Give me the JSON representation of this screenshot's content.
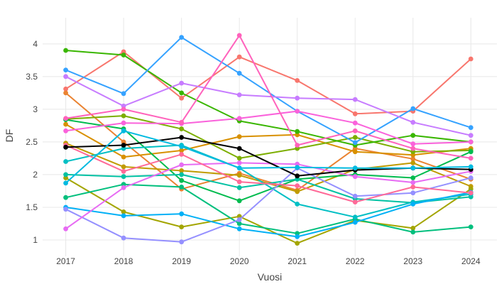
{
  "colors": {
    "background": "#ffffff",
    "grid": "#e8e8e8",
    "tick_text": "#444444"
  },
  "chart_data": {
    "type": "line",
    "title": "",
    "xlabel": "Vuosi",
    "ylabel": "DF",
    "x": [
      2017,
      2018,
      2019,
      2020,
      2021,
      2022,
      2023,
      2024
    ],
    "xtick_labels": [
      "2017",
      "2018",
      "2019",
      "2020",
      "2021",
      "2022",
      "2023",
      "2024"
    ],
    "ytick_values": [
      1,
      1.5,
      2,
      2.5,
      3,
      3.5,
      4
    ],
    "ytick_labels": [
      "1",
      "1.5",
      "2",
      "2.5",
      "3",
      "3.5",
      "4"
    ],
    "xlim": [
      2016.6,
      2024.45
    ],
    "ylim": [
      0.75,
      4.4
    ],
    "grid": true,
    "legend_position": "none",
    "marker": "circle",
    "series": [
      {
        "color": "#F8766D",
        "values": [
          3.31,
          3.88,
          3.17,
          3.8,
          3.44,
          2.93,
          2.97,
          3.77
        ]
      },
      {
        "color": "#EA8331",
        "values": [
          3.25,
          2.5,
          1.78,
          2.02,
          1.76,
          2.4,
          2.24,
          1.93
        ]
      },
      {
        "color": "#D89000",
        "values": [
          2.77,
          2.27,
          2.37,
          2.58,
          2.61,
          2.35,
          2.3,
          2.4
        ]
      },
      {
        "color": "#C09B00",
        "values": [
          2.48,
          2.12,
          2.06,
          1.99,
          1.74,
          2.08,
          2.18,
          1.82
        ]
      },
      {
        "color": "#A3A500",
        "values": [
          1.95,
          1.43,
          1.2,
          1.36,
          0.95,
          1.3,
          1.18,
          1.78
        ]
      },
      {
        "color": "#7CAE00",
        "values": [
          2.85,
          2.9,
          2.7,
          2.25,
          2.4,
          2.57,
          2.35,
          2.37
        ]
      },
      {
        "color": "#39B600",
        "values": [
          3.9,
          3.83,
          3.25,
          2.82,
          2.66,
          2.45,
          2.6,
          2.5
        ]
      },
      {
        "color": "#00BB4E",
        "values": [
          2.84,
          2.7,
          1.91,
          1.6,
          1.93,
          2.0,
          1.95,
          2.35
        ]
      },
      {
        "color": "#00BF7D",
        "values": [
          1.65,
          1.85,
          1.81,
          1.25,
          1.1,
          1.32,
          1.12,
          1.2
        ]
      },
      {
        "color": "#00C1A3",
        "values": [
          2.0,
          1.97,
          2.0,
          1.8,
          1.93,
          1.63,
          1.57,
          1.66
        ]
      },
      {
        "color": "#00BFC4",
        "values": [
          2.2,
          2.4,
          2.45,
          2.1,
          1.55,
          1.35,
          1.58,
          1.7
        ]
      },
      {
        "color": "#00B0F6",
        "values": [
          1.5,
          1.37,
          1.4,
          1.17,
          1.05,
          1.27,
          1.55,
          1.73
        ]
      },
      {
        "color": "#35A2FF",
        "values": [
          3.6,
          3.24,
          4.1,
          3.55,
          2.97,
          2.49,
          3.01,
          2.72
        ]
      },
      {
        "color": "#9590FF",
        "values": [
          1.47,
          1.03,
          0.97,
          1.31,
          2.1,
          1.67,
          1.72,
          1.95
        ]
      },
      {
        "color": "#C77CFF",
        "values": [
          3.5,
          3.05,
          3.4,
          3.22,
          3.17,
          3.15,
          2.8,
          2.6
        ]
      },
      {
        "color": "#E76BF3",
        "values": [
          1.17,
          1.8,
          2.15,
          2.18,
          2.16,
          1.97,
          1.88,
          2.05
        ]
      },
      {
        "color": "#FA62DB",
        "values": [
          2.67,
          2.79,
          2.78,
          2.86,
          2.97,
          2.79,
          2.47,
          2.5
        ]
      },
      {
        "color": "#FF62BC",
        "values": [
          2.86,
          3.0,
          2.8,
          4.13,
          2.45,
          2.67,
          2.4,
          2.25
        ]
      },
      {
        "color": "#FF6A98",
        "values": [
          2.45,
          2.05,
          2.31,
          1.89,
          1.83,
          1.58,
          1.81,
          1.72
        ]
      },
      {
        "color": "#000000",
        "values": [
          2.42,
          2.45,
          2.57,
          2.4,
          1.98,
          2.07,
          2.1,
          2.08
        ]
      },
      {
        "color": "#00BAE0",
        "values": [
          1.87,
          2.67,
          2.43,
          2.1,
          2.11,
          2.1,
          2.1,
          2.12
        ]
      }
    ]
  }
}
